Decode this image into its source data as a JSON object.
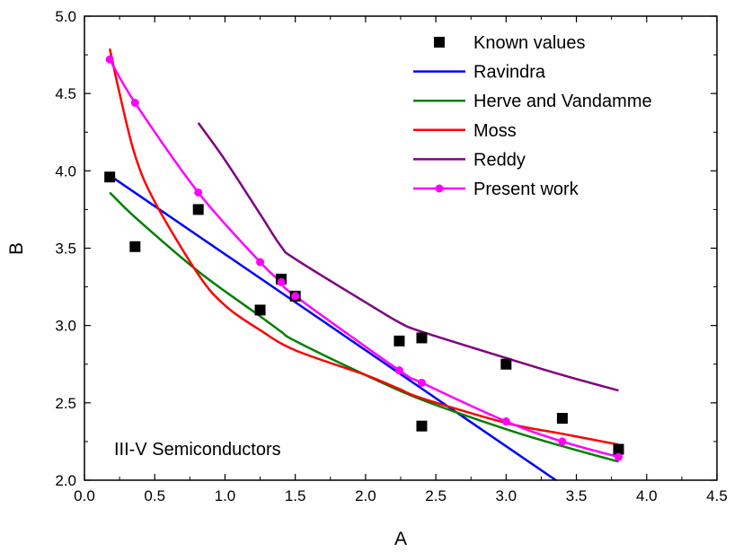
{
  "chart_data": {
    "type": "scatter",
    "title": "",
    "xlabel": "A",
    "ylabel": "B",
    "xlim": [
      0.0,
      4.5
    ],
    "ylim": [
      2.0,
      5.0
    ],
    "x_ticks": [
      "0.0",
      "0.5",
      "1.0",
      "1.5",
      "2.0",
      "2.5",
      "3.0",
      "3.5",
      "4.0",
      "4.5"
    ],
    "y_ticks": [
      "2.0",
      "2.5",
      "3.0",
      "3.5",
      "4.0",
      "4.5",
      "5.0"
    ],
    "grid": false,
    "legend_position": "top-right",
    "annotation": "III-V Semiconductors",
    "series": [
      {
        "name": "Known values",
        "kind": "points",
        "marker": "square",
        "color": "#000000",
        "points": [
          [
            0.18,
            3.96
          ],
          [
            0.36,
            3.51
          ],
          [
            0.81,
            3.75
          ],
          [
            1.25,
            3.1
          ],
          [
            1.4,
            3.3
          ],
          [
            1.5,
            3.19
          ],
          [
            2.24,
            2.9
          ],
          [
            2.4,
            2.92
          ],
          [
            2.4,
            2.35
          ],
          [
            3.0,
            2.75
          ],
          [
            3.4,
            2.4
          ],
          [
            3.8,
            2.2
          ]
        ]
      },
      {
        "name": "Ravindra",
        "kind": "line",
        "color": "#0000ff",
        "points": [
          [
            0.18,
            3.97
          ],
          [
            3.37,
            1.99
          ]
        ]
      },
      {
        "name": "Herve and Vandamme",
        "kind": "line",
        "color": "#008000",
        "points": [
          [
            0.18,
            3.86
          ],
          [
            0.36,
            3.7
          ],
          [
            0.81,
            3.35
          ],
          [
            1.25,
            3.06
          ],
          [
            1.4,
            2.96
          ],
          [
            1.5,
            2.9
          ],
          [
            2.0,
            2.68
          ],
          [
            2.4,
            2.52
          ],
          [
            3.0,
            2.33
          ],
          [
            3.4,
            2.22
          ],
          [
            3.8,
            2.12
          ]
        ]
      },
      {
        "name": "Moss",
        "kind": "line",
        "color": "#ff0000",
        "points": [
          [
            0.18,
            4.79
          ],
          [
            0.25,
            4.5
          ],
          [
            0.36,
            4.1
          ],
          [
            0.5,
            3.8
          ],
          [
            0.81,
            3.33
          ],
          [
            1.0,
            3.13
          ],
          [
            1.25,
            2.97
          ],
          [
            1.5,
            2.84
          ],
          [
            2.0,
            2.68
          ],
          [
            2.24,
            2.59
          ],
          [
            2.4,
            2.53
          ],
          [
            3.0,
            2.37
          ],
          [
            3.4,
            2.3
          ],
          [
            3.8,
            2.23
          ]
        ]
      },
      {
        "name": "Reddy",
        "kind": "line",
        "color": "#800080",
        "points": [
          [
            0.81,
            4.31
          ],
          [
            1.0,
            4.07
          ],
          [
            1.25,
            3.72
          ],
          [
            1.4,
            3.51
          ],
          [
            1.5,
            3.43
          ],
          [
            2.0,
            3.15
          ],
          [
            2.24,
            3.02
          ],
          [
            2.4,
            2.96
          ],
          [
            3.0,
            2.79
          ],
          [
            3.4,
            2.68
          ],
          [
            3.8,
            2.58
          ]
        ]
      },
      {
        "name": "Present work",
        "kind": "line+points",
        "marker": "circle",
        "color": "#ff00ff",
        "points": [
          [
            0.18,
            4.72
          ],
          [
            0.36,
            4.44
          ],
          [
            0.81,
            3.86
          ],
          [
            1.25,
            3.41
          ],
          [
            1.4,
            3.28
          ],
          [
            1.5,
            3.19
          ],
          [
            2.24,
            2.71
          ],
          [
            2.4,
            2.63
          ],
          [
            3.0,
            2.38
          ],
          [
            3.4,
            2.25
          ],
          [
            3.8,
            2.15
          ]
        ]
      }
    ]
  }
}
